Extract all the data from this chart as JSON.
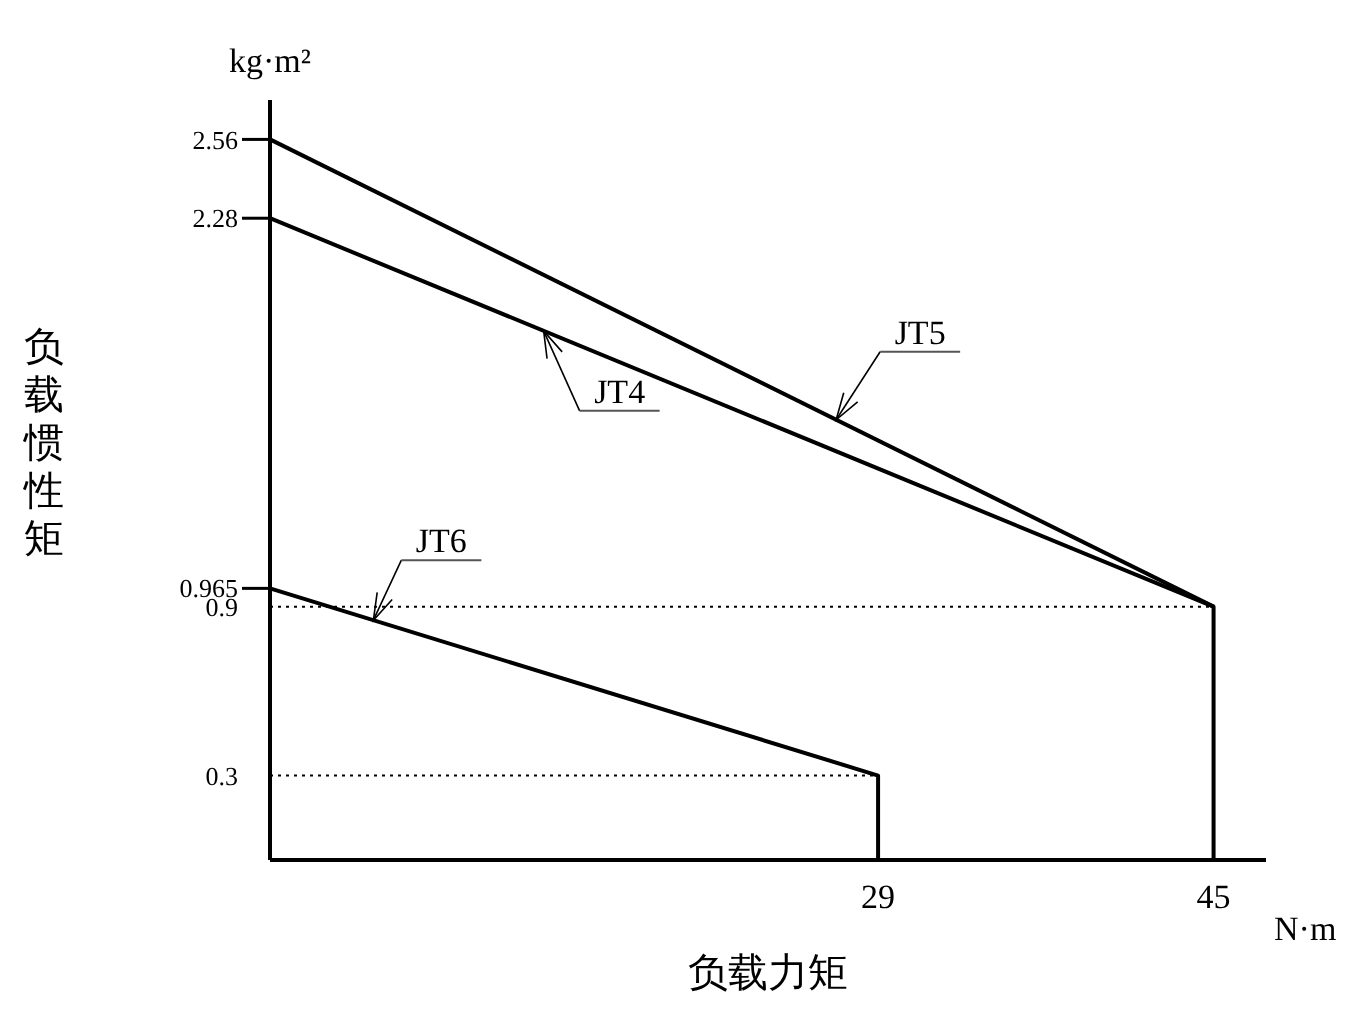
{
  "chart_data": {
    "type": "line",
    "xlabel": "负载力矩",
    "ylabel": "负载惯性矩",
    "annotations": [
      "kg·m²",
      "N·m"
    ],
    "xlim": [
      0,
      47.5
    ],
    "xticks": [
      29,
      45
    ],
    "ylim": [
      0,
      2.7
    ],
    "yticks": [
      0.3,
      0.9,
      0.965,
      2.28,
      2.56
    ],
    "line_style": "solid",
    "series": [
      {
        "name": "JT4",
        "color": "#000000",
        "x": [
          0,
          45,
          45
        ],
        "values": [
          2.28,
          0.9,
          0
        ]
      },
      {
        "name": "JT5",
        "color": "#000000",
        "x": [
          0,
          45
        ],
        "values": [
          2.56,
          0.9
        ]
      },
      {
        "name": "JT6",
        "color": "#000000",
        "x": [
          0,
          29,
          29
        ],
        "values": [
          0.965,
          0.3,
          0
        ]
      }
    ],
    "ref_lines": [
      {
        "axis": "y",
        "value": 0.9,
        "line_style": "dotted",
        "color": "#000000"
      },
      {
        "axis": "y",
        "value": 0.3,
        "line_style": "dotted",
        "color": "#000000"
      }
    ]
  }
}
